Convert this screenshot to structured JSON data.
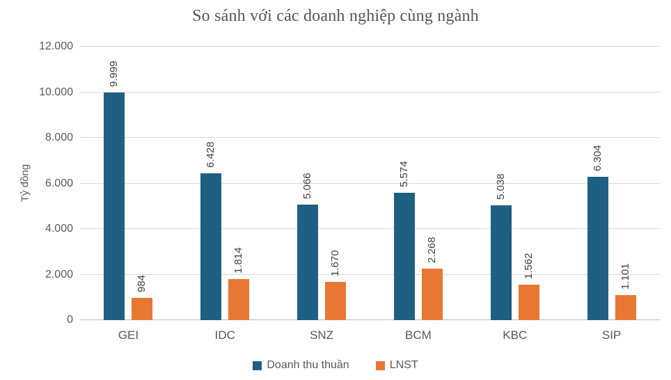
{
  "title": "So sánh với các doanh nghiệp cùng ngành",
  "chart_data": {
    "type": "bar",
    "title": "So sánh với các doanh nghiệp cùng ngành",
    "xlabel": "",
    "ylabel": "Tỷ đồng",
    "ylim": [
      0,
      12000
    ],
    "ytick_values": [
      0,
      2000,
      4000,
      6000,
      8000,
      10000,
      12000
    ],
    "ytick_labels": [
      "0",
      "2.000",
      "4.000",
      "6.000",
      "8.000",
      "10.000",
      "12.000"
    ],
    "grid": true,
    "legend_position": "bottom",
    "categories": [
      "GEI",
      "IDC",
      "SNZ",
      "BCM",
      "KBC",
      "SIP"
    ],
    "series": [
      {
        "name": "Doanh thu thuần",
        "color": "#1f5f82",
        "values": [
          9999,
          6428,
          5066,
          5574,
          5038,
          6304
        ],
        "labels": [
          "9.999",
          "6.428",
          "5.066",
          "5.574",
          "5.038",
          "6.304"
        ]
      },
      {
        "name": "LNST",
        "color": "#e87733",
        "values": [
          984,
          1814,
          1670,
          2268,
          1562,
          1101
        ],
        "labels": [
          "984",
          "1.814",
          "1.670",
          "2.268",
          "1.562",
          "1.101"
        ]
      }
    ]
  }
}
